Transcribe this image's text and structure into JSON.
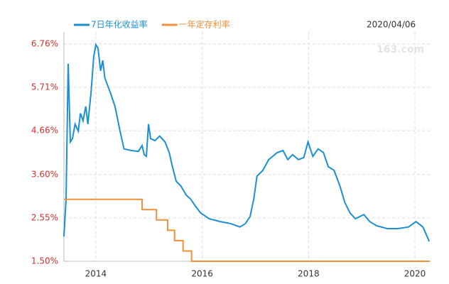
{
  "chart_data": {
    "type": "line",
    "date": "2020/04/06",
    "watermark": "163.com",
    "xlim": [
      2013.4,
      2020.28
    ],
    "xticks": [
      2014,
      2016,
      2018,
      2020
    ],
    "ylim": [
      1.5,
      7.05
    ],
    "yticks": [
      {
        "value": 1.5,
        "label": "1.50%"
      },
      {
        "value": 2.55,
        "label": "2.55%"
      },
      {
        "value": 3.6,
        "label": "3.60%"
      },
      {
        "value": 4.66,
        "label": "4.66%"
      },
      {
        "value": 5.71,
        "label": "5.71%"
      },
      {
        "value": 6.76,
        "label": "6.76%"
      }
    ],
    "grid": true,
    "series": [
      {
        "name": "7日年化收益率",
        "color": "#1a8fd1",
        "x": [
          2013.4,
          2013.44,
          2013.48,
          2013.52,
          2013.56,
          2013.61,
          2013.67,
          2013.71,
          2013.76,
          2013.81,
          2013.85,
          2013.91,
          2013.96,
          2014.0,
          2014.04,
          2014.09,
          2014.13,
          2014.17,
          2014.27,
          2014.36,
          2014.47,
          2014.53,
          2014.67,
          2014.8,
          2014.87,
          2014.91,
          2014.95,
          2014.99,
          2015.03,
          2015.11,
          2015.2,
          2015.3,
          2015.38,
          2015.44,
          2015.51,
          2015.6,
          2015.7,
          2015.78,
          2015.87,
          2015.97,
          2016.13,
          2016.34,
          2016.54,
          2016.71,
          2016.81,
          2016.9,
          2016.97,
          2017.03,
          2017.14,
          2017.25,
          2017.41,
          2017.52,
          2017.61,
          2017.7,
          2017.81,
          2017.91,
          2017.99,
          2018.08,
          2018.18,
          2018.28,
          2018.37,
          2018.48,
          2018.59,
          2018.68,
          2018.78,
          2018.88,
          2019.04,
          2019.15,
          2019.28,
          2019.48,
          2019.68,
          2019.88,
          2020.02,
          2020.15,
          2020.27
        ],
        "values": [
          2.1,
          3.01,
          6.28,
          4.39,
          4.47,
          4.82,
          4.65,
          5.08,
          4.9,
          5.25,
          4.82,
          5.59,
          6.45,
          6.74,
          6.66,
          6.11,
          6.36,
          5.93,
          5.59,
          5.25,
          4.56,
          4.22,
          4.18,
          4.16,
          4.3,
          4.08,
          4.04,
          4.82,
          4.47,
          4.42,
          4.53,
          4.39,
          4.13,
          3.79,
          3.44,
          3.32,
          3.1,
          3.01,
          2.84,
          2.67,
          2.53,
          2.46,
          2.41,
          2.33,
          2.41,
          2.58,
          3.01,
          3.56,
          3.7,
          3.96,
          4.13,
          4.18,
          3.96,
          4.08,
          3.96,
          4.01,
          4.39,
          4.04,
          4.22,
          4.13,
          3.79,
          3.7,
          3.32,
          2.93,
          2.67,
          2.53,
          2.63,
          2.46,
          2.36,
          2.29,
          2.29,
          2.33,
          2.46,
          2.33,
          1.98
        ]
      },
      {
        "name": "一年定存利率",
        "color": "#f0913a",
        "step": "post",
        "x": [
          2013.4,
          2014.87,
          2015.14,
          2015.35,
          2015.48,
          2015.64,
          2015.8,
          2020.28
        ],
        "values": [
          3.0,
          2.75,
          2.5,
          2.25,
          2.0,
          1.75,
          1.5,
          1.5
        ]
      }
    ]
  }
}
